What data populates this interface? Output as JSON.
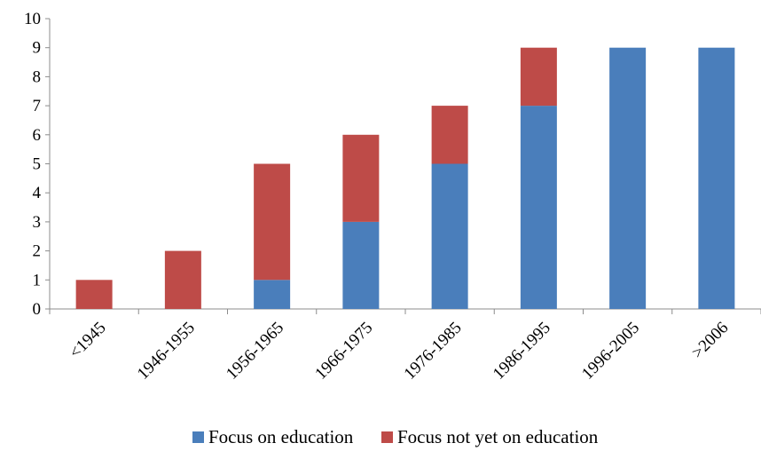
{
  "chart_data": {
    "type": "bar",
    "stacked": true,
    "categories": [
      "<1945",
      "1946-1955",
      "1956-1965",
      "1966-1975",
      "1976-1985",
      "1986-1995",
      "1996-2005",
      ">2006"
    ],
    "series": [
      {
        "name": "Focus on education",
        "values": [
          0,
          0,
          1,
          3,
          5,
          7,
          9,
          9
        ]
      },
      {
        "name": "Focus not yet on education",
        "values": [
          1,
          2,
          4,
          3,
          2,
          2,
          0,
          0
        ]
      }
    ],
    "ylim": [
      0,
      10
    ],
    "yticks": [
      "0",
      "1",
      "2",
      "3",
      "4",
      "5",
      "6",
      "7",
      "8",
      "9",
      "10"
    ],
    "grid": false,
    "legend_position": "bottom",
    "colors": {
      "Focus on education": "#4a7ebb",
      "Focus not yet on education": "#be4b48"
    }
  }
}
